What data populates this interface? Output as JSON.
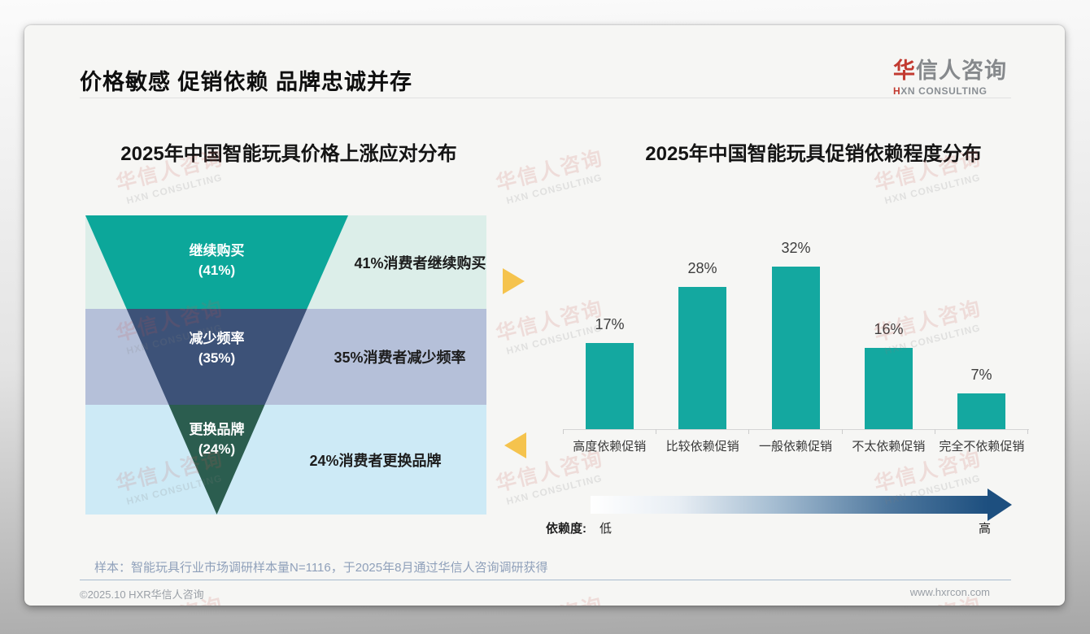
{
  "header": {
    "title": "价格敏感 促销依赖 品牌忠诚并存",
    "logo": {
      "cn_accent": "华",
      "cn_rest": "信人咨询",
      "en_accent": "H",
      "en_rest": "XN CONSULTING"
    }
  },
  "watermark": {
    "cn": "华信人咨询",
    "en": "HXN CONSULTING"
  },
  "colors": {
    "bar_teal": "#14a8a0",
    "funnel_segments": [
      "#0ca79a",
      "#3d5278",
      "#2b5d4f"
    ],
    "funnel_note_bg": [
      "#dceee9",
      "#b5c0d9",
      "#cdeaf6"
    ],
    "accent_yellow": "#f5c34d",
    "gradient_low": "#ffffff",
    "gradient_high": "#1d4f7f",
    "logo_red": "#c23a30"
  },
  "left_chart": {
    "title": "2025年中国智能玩具价格上涨应对分布",
    "stages": [
      {
        "label": "继续购买",
        "pct_label": "(41%)",
        "value": 41,
        "note": "41%消费者继续购买"
      },
      {
        "label": "减少频率",
        "pct_label": "(35%)",
        "value": 35,
        "note": "35%消费者减少频率"
      },
      {
        "label": "更换品牌",
        "pct_label": "(24%)",
        "value": 24,
        "note": "24%消费者更换品牌"
      }
    ]
  },
  "right_chart": {
    "title": "2025年中国智能玩具促销依赖程度分布",
    "categories": [
      "高度依赖促销",
      "比较依赖促销",
      "一般依赖促销",
      "不太依赖促销",
      "完全不依赖促销"
    ],
    "values": [
      17,
      28,
      32,
      16,
      7
    ],
    "value_labels": [
      "17%",
      "28%",
      "32%",
      "16%",
      "7%"
    ],
    "axis_annotation": {
      "label": "依赖度:",
      "low": "低",
      "high": "高"
    }
  },
  "chart_data": [
    {
      "type": "funnel",
      "title": "2025年中国智能玩具价格上涨应对分布",
      "categories": [
        "继续购买",
        "减少频率",
        "更换品牌"
      ],
      "values": [
        41,
        35,
        24
      ],
      "unit": "%",
      "annotations": [
        "41%消费者继续购买",
        "35%消费者减少频率",
        "24%消费者更换品牌"
      ],
      "legend_position": "none",
      "grid": false
    },
    {
      "type": "bar",
      "title": "2025年中国智能玩具促销依赖程度分布",
      "categories": [
        "高度依赖促销",
        "比较依赖促销",
        "一般依赖促销",
        "不太依赖促销",
        "完全不依赖促销"
      ],
      "values": [
        17,
        28,
        32,
        16,
        7
      ],
      "unit": "%",
      "ylim": [
        0,
        35
      ],
      "grid": false,
      "data_labels": true,
      "axis_annotation": {
        "label": "依赖度:",
        "low": "低",
        "high": "高"
      }
    }
  ],
  "footer": {
    "note": "样本：智能玩具行业市场调研样本量N=1116，于2025年8月通过华信人咨询调研获得",
    "copyright": "©2025.10 HXR华信人咨询",
    "website": "www.hxrcon.com"
  }
}
